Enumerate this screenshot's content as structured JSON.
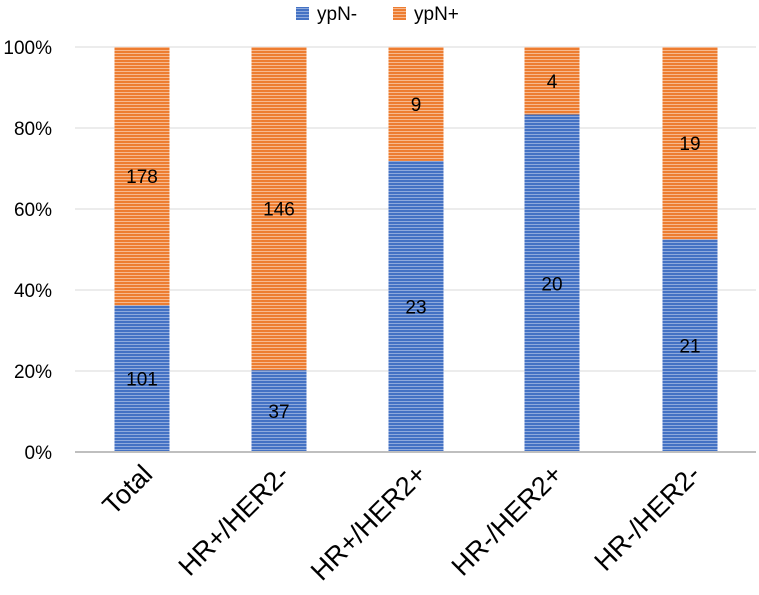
{
  "chart_data": {
    "type": "bar",
    "stacked": "percent",
    "title": "",
    "xlabel": "",
    "ylabel": "",
    "categories": [
      "Total",
      "HR+/HER2-",
      "HR+/HER2+",
      "HR-/HER2+",
      "HR-/HER2-"
    ],
    "series": [
      {
        "name": "ypN-",
        "values": [
          101,
          37,
          23,
          20,
          21
        ],
        "color": "#4472C4"
      },
      {
        "name": "ypN+",
        "values": [
          178,
          146,
          9,
          4,
          19
        ],
        "color": "#ED7D31"
      }
    ],
    "ylim": [
      0,
      100
    ],
    "yticks": [
      "0%",
      "20%",
      "40%",
      "60%",
      "80%",
      "100%"
    ],
    "grid": true,
    "legend_position": "top"
  }
}
